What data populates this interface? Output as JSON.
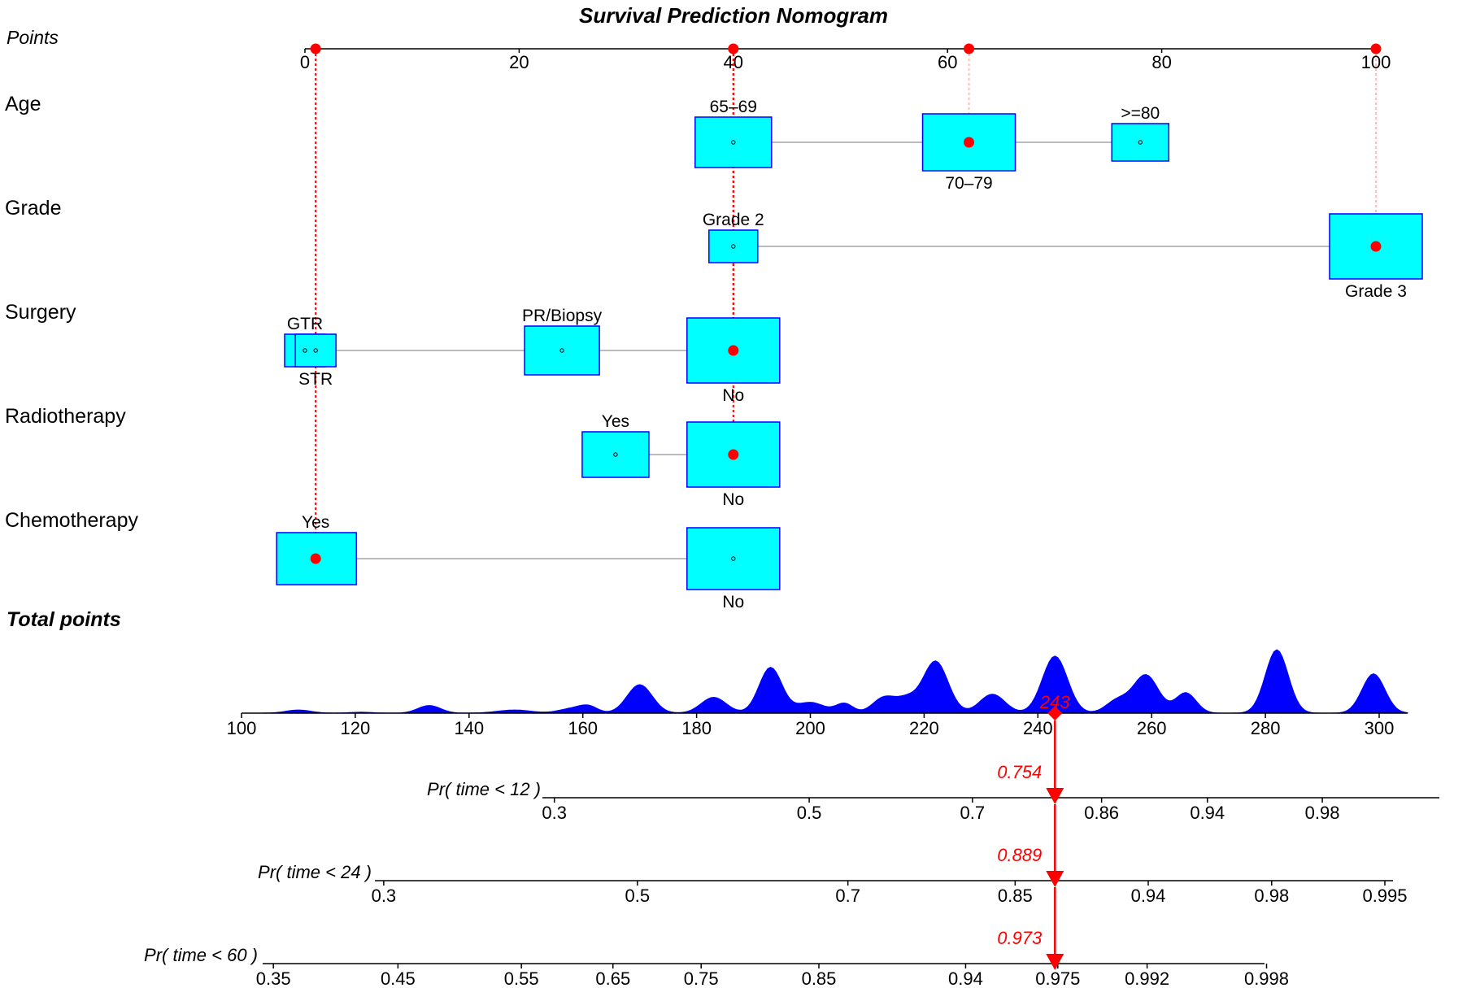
{
  "chart_data": {
    "type": "nomogram",
    "title": "Survival Prediction Nomogram",
    "points_axis": {
      "label": "Points",
      "ticks": [
        0,
        20,
        40,
        60,
        80,
        100
      ],
      "range": [
        0,
        100
      ],
      "marker_values": [
        1,
        40,
        62,
        100
      ]
    },
    "variables": [
      {
        "name": "Age",
        "levels": [
          {
            "label": "65–69",
            "points": 40,
            "label_pos": "above",
            "selected": false
          },
          {
            "label": "70–79",
            "points": 62,
            "label_pos": "below",
            "selected": true
          },
          {
            "label": ">=80",
            "points": 78,
            "label_pos": "above",
            "selected": false
          }
        ]
      },
      {
        "name": "Grade",
        "levels": [
          {
            "label": "Grade 2",
            "points": 40,
            "label_pos": "above",
            "selected": false
          },
          {
            "label": "Grade 3",
            "points": 100,
            "label_pos": "below",
            "selected": true
          }
        ]
      },
      {
        "name": "Surgery",
        "levels": [
          {
            "label": "GTR",
            "points": 0,
            "label_pos": "above",
            "selected": false
          },
          {
            "label": "STR",
            "points": 1,
            "label_pos": "below",
            "selected": false
          },
          {
            "label": "PR/Biopsy",
            "points": 24,
            "label_pos": "above",
            "selected": false
          },
          {
            "label": "No",
            "points": 40,
            "label_pos": "below",
            "selected": true
          }
        ]
      },
      {
        "name": "Radiotherapy",
        "levels": [
          {
            "label": "Yes",
            "points": 29,
            "label_pos": "above",
            "selected": false
          },
          {
            "label": "No",
            "points": 40,
            "label_pos": "below",
            "selected": true
          }
        ]
      },
      {
        "name": "Chemotherapy",
        "levels": [
          {
            "label": "Yes",
            "points": 1,
            "label_pos": "above",
            "selected": true
          },
          {
            "label": "No",
            "points": 40,
            "label_pos": "below",
            "selected": false
          }
        ]
      }
    ],
    "total_points": {
      "label": "Total points",
      "ticks": [
        100,
        120,
        140,
        160,
        180,
        200,
        220,
        240,
        260,
        280,
        300
      ],
      "range": [
        100,
        300
      ],
      "value": 243,
      "value_label": "243",
      "density_peaks": [
        {
          "center": 110,
          "width": 2.2,
          "height": 0.05
        },
        {
          "center": 121,
          "width": 2,
          "height": 0.015
        },
        {
          "center": 133,
          "width": 2,
          "height": 0.12
        },
        {
          "center": 148,
          "width": 3,
          "height": 0.05
        },
        {
          "center": 158,
          "width": 2.2,
          "height": 0.07
        },
        {
          "center": 161,
          "width": 1.6,
          "height": 0.1
        },
        {
          "center": 170,
          "width": 2.2,
          "height": 0.45
        },
        {
          "center": 183,
          "width": 2.2,
          "height": 0.25
        },
        {
          "center": 193,
          "width": 2,
          "height": 0.72
        },
        {
          "center": 200,
          "width": 2.5,
          "height": 0.17
        },
        {
          "center": 206,
          "width": 1.5,
          "height": 0.15
        },
        {
          "center": 213,
          "width": 2,
          "height": 0.25
        },
        {
          "center": 217,
          "width": 1.8,
          "height": 0.2
        },
        {
          "center": 222,
          "width": 2.2,
          "height": 0.82
        },
        {
          "center": 232,
          "width": 2.2,
          "height": 0.3
        },
        {
          "center": 243,
          "width": 2.2,
          "height": 0.9
        },
        {
          "center": 254,
          "width": 2,
          "height": 0.2
        },
        {
          "center": 259,
          "width": 2.2,
          "height": 0.6
        },
        {
          "center": 266,
          "width": 1.8,
          "height": 0.32
        },
        {
          "center": 282,
          "width": 2,
          "height": 1.0
        },
        {
          "center": 299,
          "width": 2,
          "height": 0.62
        }
      ]
    },
    "probability_axes": [
      {
        "label": "Pr( time < 12 )",
        "ticks": [
          {
            "label": "0.3",
            "total": 155
          },
          {
            "label": "0.5",
            "total": 199.8
          },
          {
            "label": "0.7",
            "total": 228.5
          },
          {
            "label": "0.86",
            "total": 251.2
          },
          {
            "label": "0.94",
            "total": 269.8
          },
          {
            "label": "0.98",
            "total": 290
          }
        ],
        "value": 0.754,
        "value_label": "0.754"
      },
      {
        "label": "Pr( time < 24 )",
        "ticks": [
          {
            "label": "0.3",
            "total": 125
          },
          {
            "label": "0.5",
            "total": 169.6
          },
          {
            "label": "0.7",
            "total": 206.6
          },
          {
            "label": "0.85",
            "total": 236
          },
          {
            "label": "0.94",
            "total": 259.4
          },
          {
            "label": "0.98",
            "total": 281.1
          },
          {
            "label": "0.995",
            "total": 301
          }
        ],
        "value": 0.889,
        "value_label": "0.889"
      },
      {
        "label": "Pr( time < 60 )",
        "ticks": [
          {
            "label": "0.35",
            "total": 105.6
          },
          {
            "label": "0.45",
            "total": 127.5
          },
          {
            "label": "0.55",
            "total": 149.2
          },
          {
            "label": "0.65",
            "total": 165.3
          },
          {
            "label": "0.75",
            "total": 180.8
          },
          {
            "label": "0.85",
            "total": 201.5
          },
          {
            "label": "0.94",
            "total": 227.3
          },
          {
            "label": "0.975",
            "total": 243.5
          },
          {
            "label": "0.992",
            "total": 259.2
          },
          {
            "label": "0.998",
            "total": 280.2
          }
        ],
        "value": 0.973,
        "value_label": "0.973"
      }
    ],
    "colors": {
      "box_fill": "#00ffff",
      "box_stroke": "#0000ff",
      "marker": "#ff0000",
      "density": "#0000ff",
      "connector": "#bbbbbb",
      "value_text": "#ff0000"
    }
  }
}
